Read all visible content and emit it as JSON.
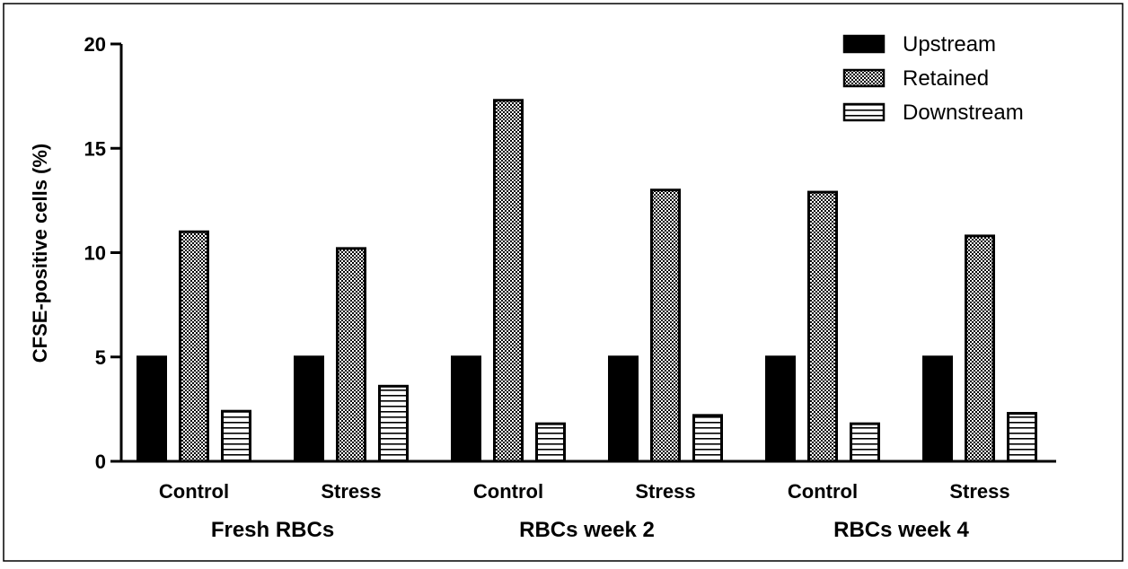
{
  "chart_data": {
    "type": "bar",
    "ylabel": "CFSE-positive cells (%)",
    "ylim": [
      0,
      20
    ],
    "yticks": [
      0,
      5,
      10,
      15,
      20
    ],
    "categories": [
      "Control",
      "Stress",
      "Control",
      "Stress",
      "Control",
      "Stress"
    ],
    "groups": [
      {
        "label": "Fresh RBCs",
        "categories": [
          0,
          1
        ]
      },
      {
        "label": "RBCs week 2",
        "categories": [
          2,
          3
        ]
      },
      {
        "label": "RBCs week 4",
        "categories": [
          4,
          5
        ]
      }
    ],
    "series": [
      {
        "name": "Upstream",
        "pattern": "solid",
        "values": [
          5.0,
          5.0,
          5.0,
          5.0,
          5.0,
          5.0
        ]
      },
      {
        "name": "Retained",
        "pattern": "checker",
        "values": [
          11.0,
          10.2,
          17.3,
          13.0,
          12.9,
          10.8
        ]
      },
      {
        "name": "Downstream",
        "pattern": "horizontal-stripes",
        "values": [
          2.4,
          3.6,
          1.8,
          2.2,
          1.8,
          2.3
        ]
      }
    ],
    "legend_position": "top-right",
    "grid": false,
    "colors": {
      "fill": "#000000",
      "background": "#ffffff"
    }
  }
}
